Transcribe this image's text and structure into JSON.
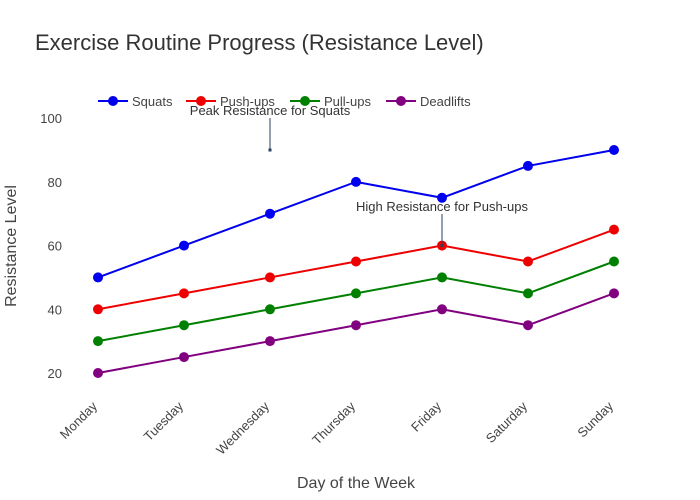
{
  "chart_data": {
    "type": "line",
    "title": "Exercise Routine Progress (Resistance Level)",
    "xlabel": "Day of the Week",
    "ylabel": "Resistance Level",
    "categories": [
      "Monday",
      "Tuesday",
      "Wednesday",
      "Thursday",
      "Friday",
      "Saturday",
      "Sunday"
    ],
    "yticks": [
      20,
      40,
      60,
      80,
      100
    ],
    "ylim": [
      10,
      110
    ],
    "grid": false,
    "legend_position": "top-left",
    "series": [
      {
        "name": "Squats",
        "color": "#0000ee",
        "values": [
          50,
          60,
          70,
          80,
          75,
          85,
          90
        ]
      },
      {
        "name": "Push-ups",
        "color": "#ee0000",
        "values": [
          40,
          45,
          50,
          55,
          60,
          55,
          65
        ]
      },
      {
        "name": "Pull-ups",
        "color": "#008000",
        "values": [
          30,
          35,
          40,
          45,
          50,
          45,
          55
        ]
      },
      {
        "name": "Deadlifts",
        "color": "#800080",
        "values": [
          20,
          25,
          30,
          35,
          40,
          35,
          45
        ]
      }
    ],
    "annotations": [
      {
        "text": "Peak Resistance for Squats",
        "x": "Wednesday",
        "y": 90
      },
      {
        "text": "High Resistance for Push-ups",
        "x": "Friday",
        "y": 60
      }
    ]
  }
}
